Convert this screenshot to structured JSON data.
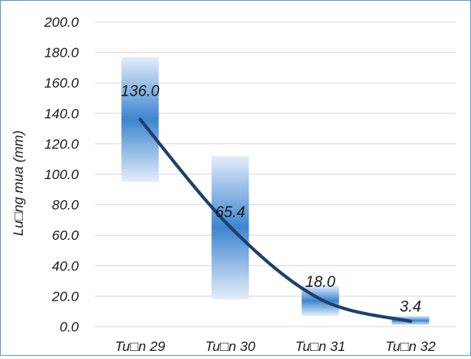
{
  "chart_data": {
    "type": "bar",
    "categories": [
      "Tu□n 29",
      "Tu□n 30",
      "Tu□n 31",
      "Tu□n 32"
    ],
    "series": [
      {
        "values": [
          136.0,
          65.4,
          18.0,
          3.4
        ],
        "data_labels": [
          "136.0",
          "65.4",
          "18.0",
          "3.4"
        ]
      }
    ],
    "range_bars": [
      {
        "low": 95,
        "high": 177
      },
      {
        "low": 18,
        "high": 112
      },
      {
        "low": 7,
        "high": 27
      },
      {
        "low": 1,
        "high": 7
      }
    ],
    "trend_line": true,
    "ylabel": "Lu□ng mua (mm)",
    "xlabel": "",
    "ylim": [
      0,
      200
    ],
    "yticks": [
      "0.0",
      "20.0",
      "40.0",
      "60.0",
      "80.0",
      "100.0",
      "120.0",
      "140.0",
      "160.0",
      "180.0",
      "200.0"
    ],
    "grid": "horizontal",
    "colors": {
      "bar_core": "#3d85d0",
      "bar_edge": "#e4eef9",
      "line": "#1f3f6a",
      "grid": "#d9d9d9",
      "frame": "#5b9bd5"
    }
  }
}
